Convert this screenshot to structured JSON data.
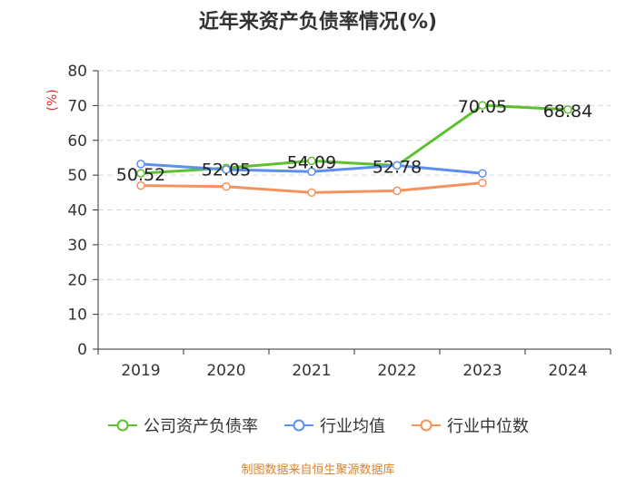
{
  "chart_data": {
    "type": "line",
    "title": "近年来资产负债率情况(%)",
    "ylabel": "(%)",
    "xlabel": "",
    "ylim": [
      0,
      80
    ],
    "yticks": [
      0,
      10,
      20,
      30,
      40,
      50,
      60,
      70,
      80
    ],
    "categories": [
      "2019",
      "2020",
      "2021",
      "2022",
      "2023",
      "2024"
    ],
    "series": [
      {
        "name": "公司资产负债率",
        "color": "#5cc02f",
        "values": [
          50.52,
          52.05,
          54.09,
          52.78,
          70.05,
          68.84
        ],
        "labels": [
          "50.52",
          "52.05",
          "54.09",
          "52.78",
          "70.05",
          "68.84"
        ]
      },
      {
        "name": "行业均值",
        "color": "#5b8ff0",
        "values": [
          53.2,
          51.6,
          51.0,
          52.8,
          50.5,
          null
        ]
      },
      {
        "name": "行业中位数",
        "color": "#f4925e",
        "values": [
          47.0,
          46.7,
          45.0,
          45.5,
          47.8,
          null
        ]
      }
    ],
    "source": "制图数据来自恒生聚源数据库"
  }
}
